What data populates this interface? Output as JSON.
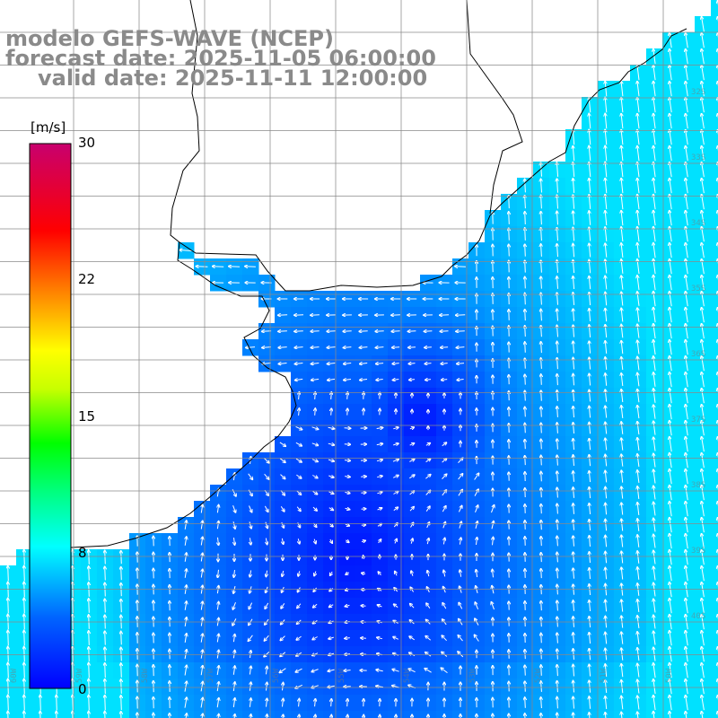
{
  "titles": {
    "model": "modelo GEFS-WAVE (NCEP)",
    "forecast": "forecast date: 2025-11-05 06:00:00",
    "valid": "valid date: 2025-11-11 12:00:00"
  },
  "colorbar": {
    "unit": "[m/s]",
    "ticks": [
      "30",
      "22",
      "15",
      "8",
      "0"
    ],
    "range": [
      0,
      30
    ],
    "colors": [
      "#0000ff",
      "#00b4ff",
      "#00ffff",
      "#00ff00",
      "#ffff00",
      "#ff8000",
      "#ff0000",
      "#c8006e"
    ]
  },
  "map": {
    "variable": "wind speed and direction",
    "land_color": "#ffffff",
    "coastline_color": "#000000",
    "grid_color": "#888888",
    "arrow_color": "#ffffff",
    "lat_labels": [
      "32S",
      "33S",
      "34S",
      "35S",
      "36S",
      "37S",
      "38S",
      "39S",
      "40S"
    ],
    "lon_labels": [
      "60W",
      "59W",
      "58W",
      "57W",
      "56W",
      "55W",
      "54W",
      "53W",
      "52W",
      "51W",
      "50W"
    ]
  }
}
